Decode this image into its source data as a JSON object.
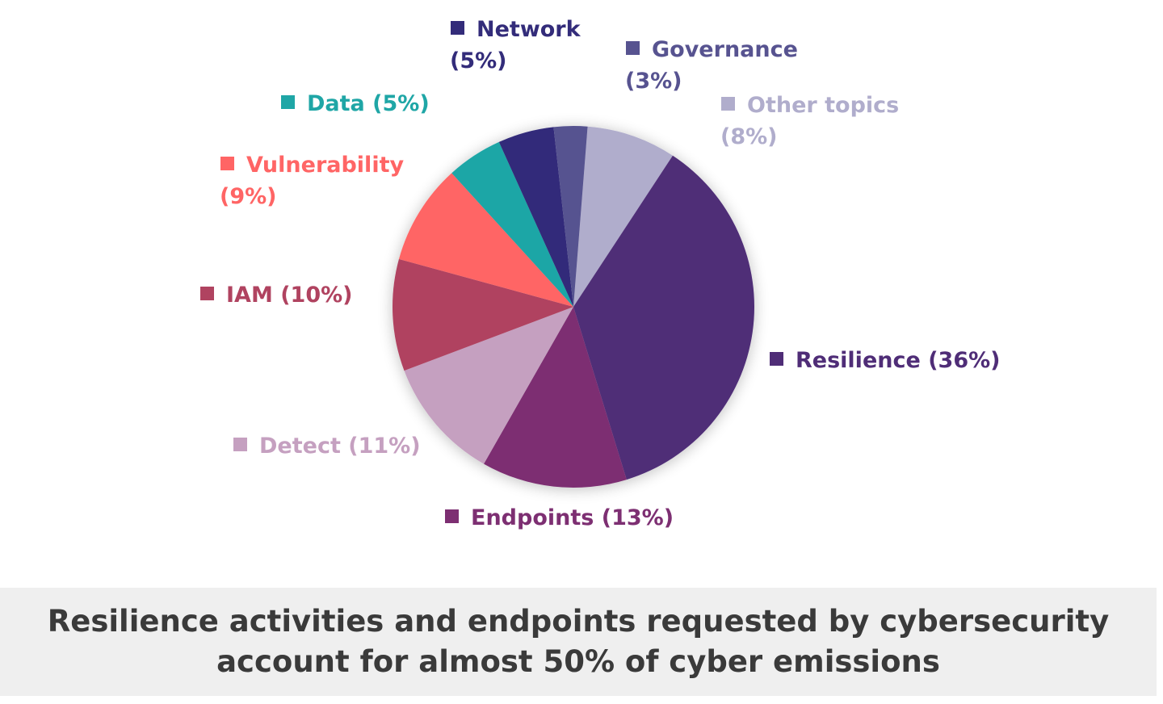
{
  "chart_data": {
    "type": "pie",
    "series": [
      {
        "name": "Resilience",
        "label": "Resilience (36%)",
        "value": 36,
        "color": "#4f2d77"
      },
      {
        "name": "Endpoints",
        "label": "Endpoints (13%)",
        "value": 13,
        "color": "#7d2f72"
      },
      {
        "name": "Detect",
        "label": "Detect (11%)",
        "value": 11,
        "color": "#c5a0c0"
      },
      {
        "name": "IAM",
        "label": "IAM (10%)",
        "value": 10,
        "color": "#b04360"
      },
      {
        "name": "Vulnerability",
        "label_lines": [
          "Vulnerability",
          "(9%)"
        ],
        "value": 9,
        "color": "#ff6565"
      },
      {
        "name": "Data",
        "label": "Data (5%)",
        "value": 5,
        "color": "#1fa6a6"
      },
      {
        "name": "Network",
        "label_lines": [
          "Network",
          "(5%)"
        ],
        "value": 5,
        "color": "#332c7a"
      },
      {
        "name": "Governance",
        "label_lines": [
          "Governance",
          "(3%)"
        ],
        "value": 3,
        "color": "#575390"
      },
      {
        "name": "Other topics",
        "label_lines": [
          "Other topics",
          "(8%)"
        ],
        "value": 8,
        "color": "#b0adcc"
      }
    ]
  },
  "caption": {
    "line1": "Resilience activities and endpoints requested by cybersecurity",
    "line2": "account for almost 50% of cyber emissions"
  }
}
